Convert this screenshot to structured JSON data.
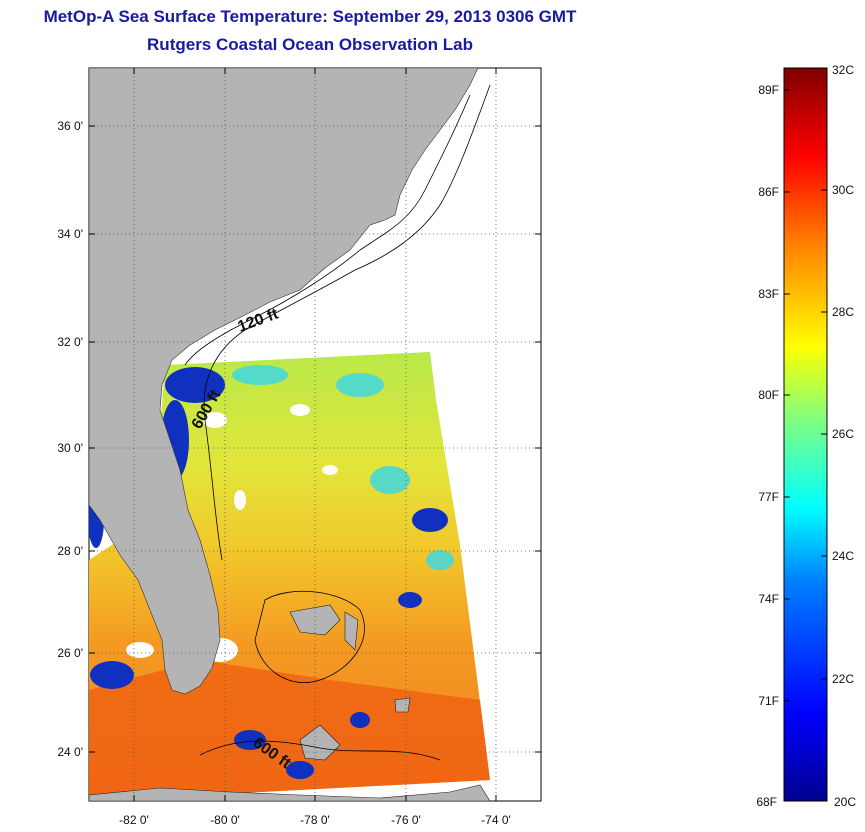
{
  "title": "MetOp-A Sea Surface Temperature:  September 29, 2013 0306 GMT",
  "subtitle": "Rutgers Coastal Ocean Observation Lab",
  "map": {
    "lat_ticks": [
      "36 0'",
      "34 0'",
      "32 0'",
      "30 0'",
      "28 0'",
      "26 0'",
      "24 0'"
    ],
    "lon_ticks": [
      "-82 0'",
      "-80 0'",
      "-78 0'",
      "-76 0'",
      "-74 0'"
    ],
    "contour_labels": [
      "120 ft",
      "600 ft",
      "600 ft"
    ],
    "colors": {
      "land": "#b4b4b4",
      "no_data": "#ffffff"
    }
  },
  "colorbar": {
    "fahrenheit_labels": [
      "89F",
      "86F",
      "83F",
      "80F",
      "77F",
      "74F",
      "71F",
      "68F"
    ],
    "celsius_labels": [
      "32C",
      "30C",
      "28C",
      "26C",
      "24C",
      "22C",
      "20C"
    ],
    "range_celsius": [
      20,
      32
    ]
  }
}
